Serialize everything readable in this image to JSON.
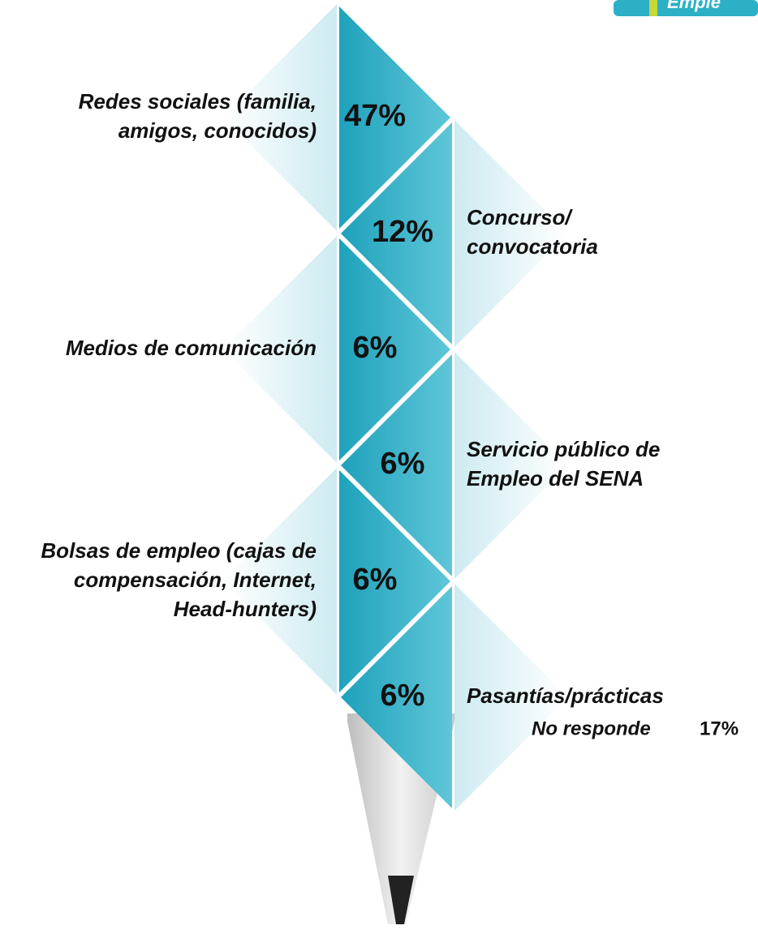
{
  "header": {
    "partial_title": "Emple"
  },
  "items": [
    {
      "label": [
        "Redes sociales (familia,",
        "amigos, conocidos)"
      ],
      "value": "47%"
    },
    {
      "label": [
        "Concurso/",
        "convocatoria"
      ],
      "value": "12%"
    },
    {
      "label": [
        "Medios de comunicación"
      ],
      "value": "6%"
    },
    {
      "label": [
        "Servicio público de",
        "Empleo del SENA"
      ],
      "value": "6%"
    },
    {
      "label": [
        "Bolsas de empleo (cajas de",
        "compensación, Internet,",
        "Head-hunters)"
      ],
      "value": "6%"
    },
    {
      "label": [
        "Pasantías/prácticas"
      ],
      "value": "6%"
    }
  ],
  "footer": {
    "label": "No responde",
    "value": "17%"
  }
}
